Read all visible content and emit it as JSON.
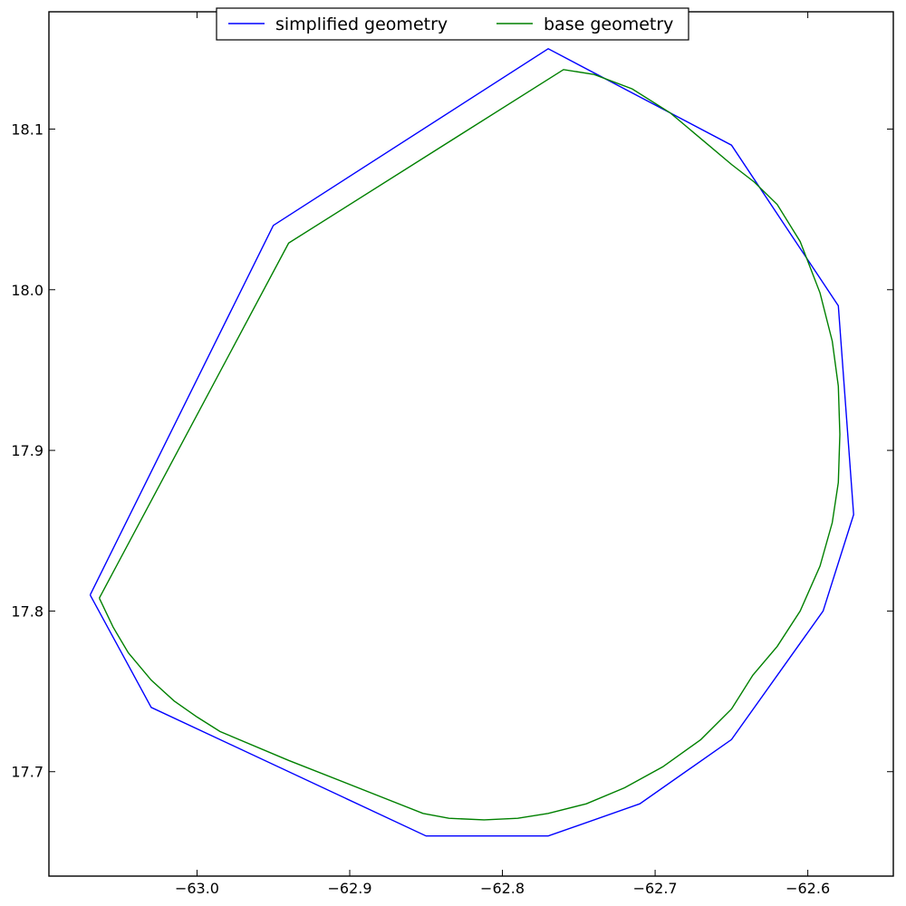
{
  "chart_data": {
    "type": "line",
    "title": "",
    "xlabel": "",
    "ylabel": "",
    "xlim": [
      -63.097,
      -62.544
    ],
    "ylim": [
      17.635,
      18.173
    ],
    "grid": false,
    "legend_placement": "top-center",
    "x_ticks": [
      -63.0,
      -62.9,
      -62.8,
      -62.7,
      -62.6
    ],
    "x_tick_labels": [
      "−63.0",
      "−62.9",
      "−62.8",
      "−62.7",
      "−62.6"
    ],
    "y_ticks": [
      17.7,
      17.8,
      17.9,
      18.0,
      18.1
    ],
    "y_tick_labels": [
      "17.7",
      "17.8",
      "17.9",
      "18.0",
      "18.1"
    ],
    "series": [
      {
        "name": "simplified geometry",
        "color": "#0000ff",
        "points": [
          [
            -63.07,
            17.81
          ],
          [
            -62.95,
            18.04
          ],
          [
            -62.77,
            18.15
          ],
          [
            -62.65,
            18.09
          ],
          [
            -62.58,
            17.99
          ],
          [
            -62.57,
            17.86
          ],
          [
            -62.59,
            17.8
          ],
          [
            -62.65,
            17.72
          ],
          [
            -62.71,
            17.68
          ],
          [
            -62.77,
            17.66
          ],
          [
            -62.85,
            17.66
          ],
          [
            -63.03,
            17.74
          ],
          [
            -63.07,
            17.81
          ]
        ]
      },
      {
        "name": "base geometry",
        "color": "#008000",
        "points": [
          [
            -63.064,
            17.808
          ],
          [
            -63.055,
            17.79
          ],
          [
            -63.045,
            17.774
          ],
          [
            -63.03,
            17.757
          ],
          [
            -63.015,
            17.744
          ],
          [
            -63.0,
            17.734
          ],
          [
            -62.985,
            17.725
          ],
          [
            -62.94,
            17.707
          ],
          [
            -62.852,
            17.674
          ],
          [
            -62.835,
            17.671
          ],
          [
            -62.812,
            17.67
          ],
          [
            -62.79,
            17.671
          ],
          [
            -62.77,
            17.674
          ],
          [
            -62.745,
            17.68
          ],
          [
            -62.72,
            17.69
          ],
          [
            -62.695,
            17.703
          ],
          [
            -62.67,
            17.72
          ],
          [
            -62.65,
            17.739
          ],
          [
            -62.636,
            17.76
          ],
          [
            -62.62,
            17.778
          ],
          [
            -62.605,
            17.8
          ],
          [
            -62.592,
            17.828
          ],
          [
            -62.584,
            17.855
          ],
          [
            -62.58,
            17.88
          ],
          [
            -62.579,
            17.91
          ],
          [
            -62.58,
            17.94
          ],
          [
            -62.584,
            17.968
          ],
          [
            -62.592,
            17.998
          ],
          [
            -62.605,
            18.03
          ],
          [
            -62.62,
            18.053
          ],
          [
            -62.635,
            18.067
          ],
          [
            -62.65,
            18.078
          ],
          [
            -62.665,
            18.09
          ],
          [
            -62.69,
            18.11
          ],
          [
            -62.715,
            18.125
          ],
          [
            -62.74,
            18.134
          ],
          [
            -62.76,
            18.137
          ],
          [
            -62.94,
            18.029
          ],
          [
            -63.064,
            17.808
          ]
        ]
      }
    ]
  }
}
